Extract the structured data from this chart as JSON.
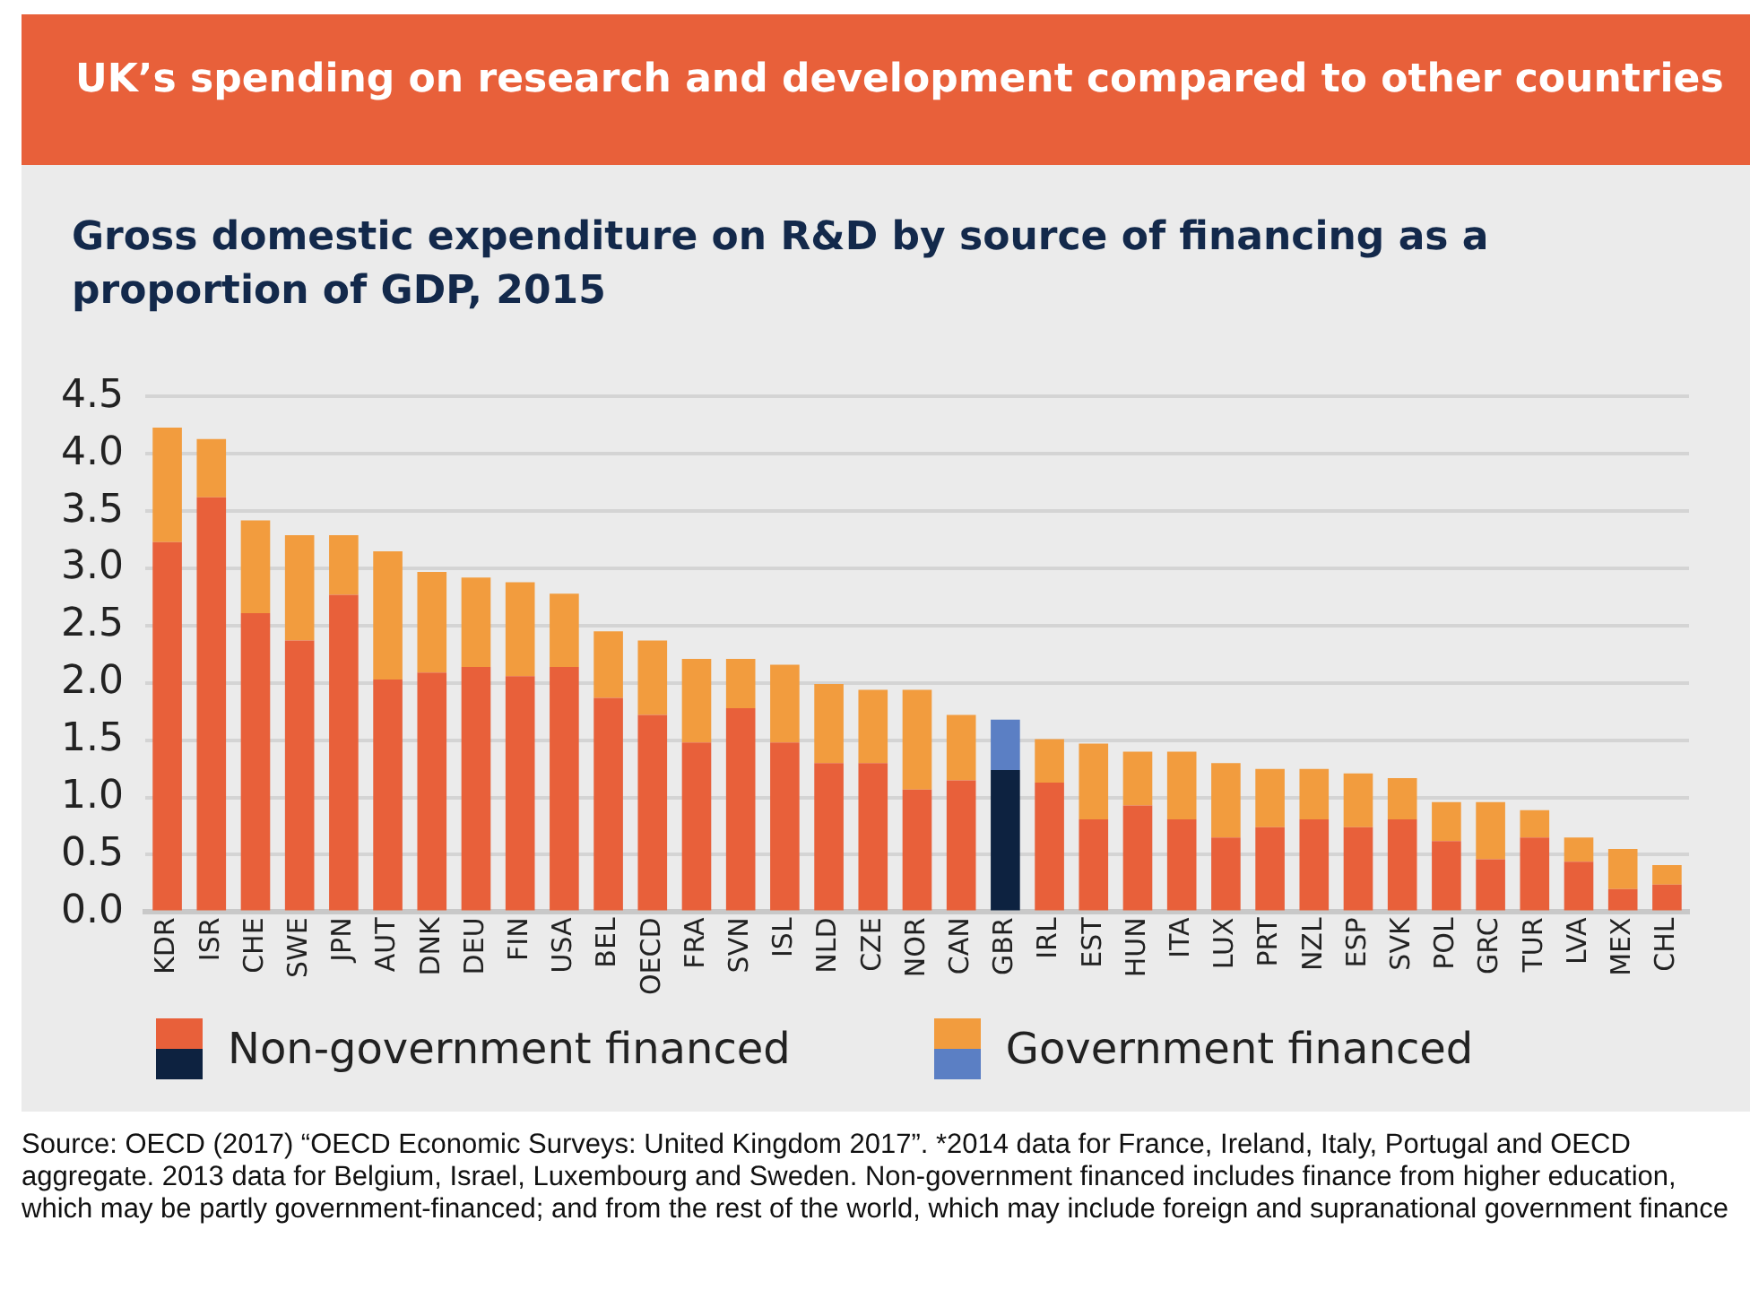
{
  "chart_data": {
    "type": "bar",
    "stacked": true,
    "title": "UK’s spending on research and development compared to other countries",
    "subtitle": "Gross domestic expenditure on R&D by source of financing as a proportion of GDP, 2015",
    "categories": [
      "KDR",
      "ISR",
      "CHE",
      "SWE",
      "JPN",
      "AUT",
      "DNK",
      "DEU",
      "FIN",
      "USA",
      "BEL",
      "OECD",
      "FRA",
      "SVN",
      "ISL",
      "NLD",
      "CZE",
      "NOR",
      "CAN",
      "GBR",
      "IRL",
      "EST",
      "HUN",
      "ITA",
      "LUX",
      "PRT",
      "NZL",
      "ESP",
      "SVK",
      "POL",
      "GRC",
      "TUR",
      "LVA",
      "MEX",
      "CHL"
    ],
    "series": [
      {
        "name": "Non-government financed",
        "color": "#e8603a",
        "colors": [
          "#e8603a",
          "#e8603a",
          "#e8603a",
          "#e8603a",
          "#e8603a",
          "#e8603a",
          "#e8603a",
          "#e8603a",
          "#e8603a",
          "#e8603a",
          "#e8603a",
          "#e8603a",
          "#e8603a",
          "#e8603a",
          "#e8603a",
          "#e8603a",
          "#e8603a",
          "#e8603a",
          "#e8603a",
          "#0d2240",
          "#e8603a",
          "#e8603a",
          "#e8603a",
          "#e8603a",
          "#e8603a",
          "#e8603a",
          "#e8603a",
          "#e8603a",
          "#e8603a",
          "#e8603a",
          "#e8603a",
          "#e8603a",
          "#e8603a",
          "#e8603a",
          "#e8603a"
        ],
        "values": [
          3.23,
          3.62,
          2.61,
          2.37,
          2.77,
          2.03,
          2.09,
          2.14,
          2.06,
          2.14,
          1.87,
          1.72,
          1.48,
          1.78,
          1.48,
          1.3,
          1.3,
          1.07,
          1.15,
          1.24,
          1.13,
          0.81,
          0.93,
          0.81,
          0.65,
          0.74,
          0.81,
          0.74,
          0.81,
          0.62,
          0.46,
          0.65,
          0.44,
          0.2,
          0.24
        ]
      },
      {
        "name": "Government financed",
        "color": "#f29c3e",
        "colors": [
          "#f29c3e",
          "#f29c3e",
          "#f29c3e",
          "#f29c3e",
          "#f29c3e",
          "#f29c3e",
          "#f29c3e",
          "#f29c3e",
          "#f29c3e",
          "#f29c3e",
          "#f29c3e",
          "#f29c3e",
          "#f29c3e",
          "#f29c3e",
          "#f29c3e",
          "#f29c3e",
          "#f29c3e",
          "#f29c3e",
          "#f29c3e",
          "#5b7fc4",
          "#f29c3e",
          "#f29c3e",
          "#f29c3e",
          "#f29c3e",
          "#f29c3e",
          "#f29c3e",
          "#f29c3e",
          "#f29c3e",
          "#f29c3e",
          "#f29c3e",
          "#f29c3e",
          "#f29c3e",
          "#f29c3e",
          "#f29c3e",
          "#f29c3e"
        ],
        "values": [
          1.0,
          0.51,
          0.81,
          0.92,
          0.52,
          1.12,
          0.88,
          0.78,
          0.82,
          0.64,
          0.58,
          0.65,
          0.73,
          0.43,
          0.68,
          0.69,
          0.64,
          0.87,
          0.57,
          0.44,
          0.38,
          0.66,
          0.47,
          0.59,
          0.65,
          0.51,
          0.44,
          0.47,
          0.36,
          0.34,
          0.5,
          0.24,
          0.21,
          0.35,
          0.17
        ]
      }
    ],
    "ylim": [
      0,
      4.5
    ],
    "yticks": [
      {
        "value": 0,
        "label": "0.0"
      },
      0.5,
      {
        "value": 1,
        "label": "1.0"
      },
      1.5,
      {
        "value": 2,
        "label": "2.0"
      },
      2.5,
      {
        "value": 3,
        "label": "3.0"
      },
      3.5,
      {
        "value": 4,
        "label": "4.0"
      },
      4.5
    ],
    "grid": "y",
    "legend": "bottom",
    "annotations": [
      "Source: OECD (2017) “OECD Economic Surveys: United Kingdom 2017”. *2014 data for France, Ireland, Italy, Portugal and OECD aggregate. 2013 data for Belgium, Israel, Luxembourg and Sweden. Non-government financed includes finance from higher education, which may be partly government-financed; and from the rest of the world, which may include foreign and supranational government finance"
    ]
  }
}
